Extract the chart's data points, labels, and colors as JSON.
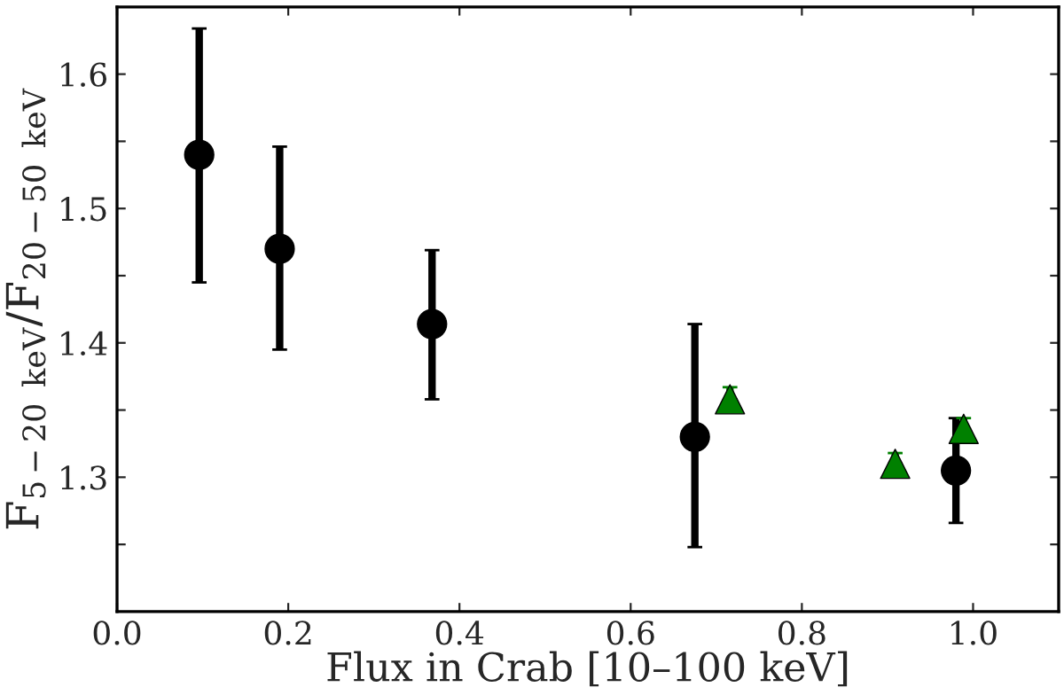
{
  "chart_data": {
    "type": "scatter",
    "xlabel": "Flux in Crab [10–100 keV]",
    "ylabel": "F$_{5−20 keV}$/F$_{20−50 keV}$",
    "xlim": [
      0.0,
      1.1
    ],
    "ylim": [
      1.2,
      1.65
    ],
    "xticks": [
      {
        "value": 0.0,
        "label": "0.0"
      },
      0.2,
      0.4,
      0.6,
      0.8,
      {
        "value": 1.0,
        "label": "1.0"
      }
    ],
    "yticks": [
      {
        "value": 1.25,
        "label": null
      },
      1.3,
      {
        "value": 1.35,
        "label": null
      },
      1.4,
      {
        "value": 1.45,
        "label": null
      },
      1.5,
      {
        "value": 1.55,
        "label": null
      },
      1.6
    ],
    "grid": false,
    "legend": false,
    "series": [
      {
        "color": "#000000",
        "marker": "circle",
        "x": [
          0.096,
          0.19,
          0.368,
          0.675,
          0.98
        ],
        "values": [
          1.54,
          1.47,
          1.414,
          1.33,
          1.305
        ],
        "errors": [
          [
            1.445,
            1.634
          ],
          [
            1.395,
            1.546
          ],
          [
            1.358,
            1.469
          ],
          [
            1.248,
            1.414
          ],
          [
            1.266,
            1.344
          ]
        ]
      },
      {
        "color": "#008000",
        "marker": "triangle",
        "x": [
          0.716,
          0.909,
          0.989
        ],
        "values": [
          1.358,
          1.31,
          1.336
        ],
        "errors": [
          [
            1.358,
            1.367
          ],
          [
            1.31,
            1.318
          ],
          [
            1.336,
            1.344
          ]
        ]
      }
    ]
  }
}
